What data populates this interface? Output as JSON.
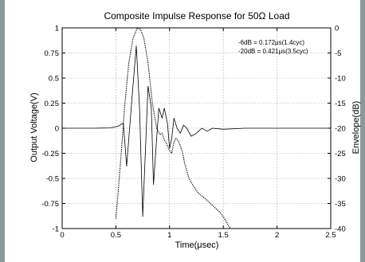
{
  "chart_data": {
    "type": "line",
    "title": "Composite Impulse Response for 50Ω Load",
    "xlabel": "Time(μsec)",
    "ylabel_left": "Output Voltage(V)",
    "ylabel_right": "Envelope(dB)",
    "xlim": [
      0,
      2.5
    ],
    "ylim_left": [
      -1,
      1
    ],
    "ylim_right": [
      -40,
      0
    ],
    "x_ticks": [
      "0",
      "0.5",
      "1",
      "1.5",
      "2",
      "2.5"
    ],
    "y_left_ticks": [
      "-1",
      "-0.75",
      "-0.5",
      "-0.25",
      "0",
      "0.25",
      "0.5",
      "0.75",
      "1"
    ],
    "y_right_ticks": [
      "-40",
      "-35",
      "-30",
      "-25",
      "-20",
      "-15",
      "-10",
      "-5",
      "0"
    ],
    "grid": true,
    "annotations": [
      "-6dB = 0.172μs(1.4cyc)",
      "-20dB = 0.421μs(3.5cyc)"
    ],
    "series": [
      {
        "axis": "left",
        "style": "solid",
        "x": [
          0.0,
          0.3,
          0.45,
          0.52,
          0.57,
          0.6,
          0.65,
          0.69,
          0.72,
          0.75,
          0.78,
          0.8,
          0.83,
          0.85,
          0.88,
          0.9,
          0.93,
          0.95,
          0.98,
          1.0,
          1.02,
          1.04,
          1.07,
          1.1,
          1.13,
          1.16,
          1.2,
          1.25,
          1.3,
          1.35,
          1.4,
          1.5,
          1.7,
          2.0,
          2.5
        ],
        "y": [
          0.0,
          0.0,
          0.003,
          0.02,
          0.05,
          -0.38,
          0.3,
          0.82,
          0.2,
          -0.88,
          -0.1,
          0.42,
          0.2,
          -0.56,
          -0.1,
          0.2,
          0.1,
          0.2,
          0.05,
          -0.2,
          -0.1,
          0.1,
          0.0,
          -0.05,
          0.03,
          0.0,
          -0.08,
          -0.05,
          0.0,
          -0.03,
          0.0,
          -0.01,
          0.0,
          0.0,
          0.0
        ]
      },
      {
        "axis": "right",
        "style": "dotted",
        "x": [
          0.5,
          0.52,
          0.55,
          0.58,
          0.62,
          0.66,
          0.7,
          0.73,
          0.76,
          0.8,
          0.84,
          0.88,
          0.91,
          0.93,
          0.95,
          0.97,
          1.0,
          1.02,
          1.04,
          1.06,
          1.08,
          1.1,
          1.12,
          1.14,
          1.18,
          1.22,
          1.27,
          1.33,
          1.38,
          1.43,
          1.48,
          1.51,
          1.53,
          1.55,
          1.57
        ],
        "y": [
          -38.0,
          -33.0,
          -25.0,
          -16.0,
          -7.0,
          -2.0,
          0.0,
          -0.3,
          -2.0,
          -7.0,
          -15.0,
          -20.0,
          -21.3,
          -21.0,
          -22.3,
          -23.0,
          -24.5,
          -25.0,
          -22.8,
          -22.0,
          -22.5,
          -23.5,
          -24.8,
          -27.0,
          -30.0,
          -31.5,
          -33.0,
          -34.0,
          -35.0,
          -36.0,
          -37.0,
          -38.0,
          -38.7,
          -39.5,
          -40.0
        ]
      }
    ]
  }
}
